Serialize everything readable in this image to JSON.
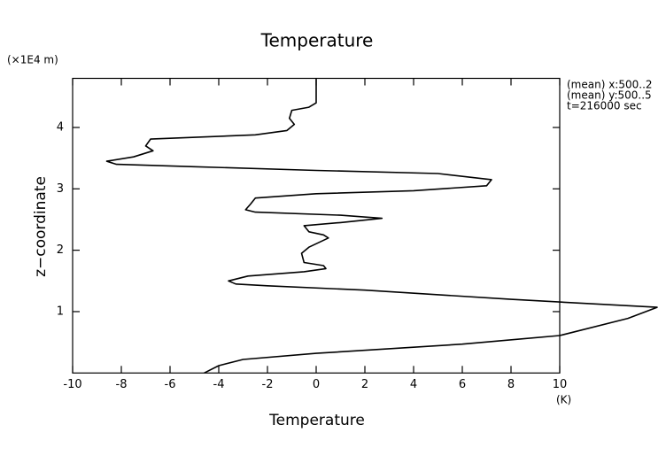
{
  "chart_data": {
    "type": "line",
    "title": "Temperature",
    "x_label": "Temperature",
    "x_unit": "(K)",
    "y_label": "z−coordinate",
    "y_unit": "(×1E4 m)",
    "annotations": [
      "(mean) x:500..2",
      "(mean) y:500..5",
      "t=216000 sec"
    ],
    "xlim": [
      -10,
      10
    ],
    "xticks": [
      -10,
      -8,
      -6,
      -4,
      -2,
      0,
      2,
      4,
      6,
      8,
      10
    ],
    "ylim": [
      0,
      4.8
    ],
    "yticks": [
      1,
      2,
      3,
      4
    ],
    "color": "#000000",
    "x": [
      0,
      0,
      -0.3,
      -1.0,
      -1.1,
      -0.9,
      -1.2,
      -2.5,
      -6.8,
      -7.0,
      -6.7,
      -7.5,
      -8.6,
      -8.2,
      -5,
      0,
      5,
      7.2,
      7.0,
      4,
      0,
      -2.5,
      -2.7,
      -2.9,
      -2.5,
      1,
      2.7,
      1,
      -0.5,
      -0.3,
      0.3,
      0.5,
      -0.3,
      -0.6,
      -0.5,
      0.3,
      0.4,
      -0.5,
      -2.8,
      -3.6,
      -3.3,
      -2,
      2,
      8,
      14,
      12.8,
      10,
      6,
      0,
      -3,
      -4,
      -4.6
    ],
    "values": [
      4.79,
      4.4,
      4.33,
      4.28,
      4.15,
      4.05,
      3.95,
      3.88,
      3.81,
      3.7,
      3.62,
      3.52,
      3.45,
      3.4,
      3.36,
      3.3,
      3.25,
      3.15,
      3.05,
      2.97,
      2.92,
      2.85,
      2.75,
      2.66,
      2.62,
      2.57,
      2.52,
      2.45,
      2.4,
      2.3,
      2.25,
      2.2,
      2.05,
      1.95,
      1.8,
      1.75,
      1.7,
      1.65,
      1.58,
      1.5,
      1.45,
      1.42,
      1.35,
      1.2,
      1.07,
      0.89,
      0.61,
      0.47,
      0.32,
      0.22,
      0.12,
      0
    ]
  }
}
